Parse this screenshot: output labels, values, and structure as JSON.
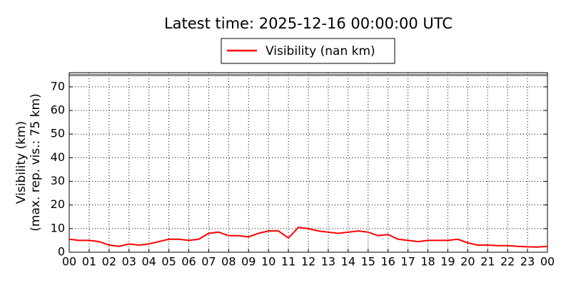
{
  "chart_data": {
    "type": "line",
    "title": "Latest time: 2025-12-16 00:00:00 UTC",
    "ylabel": [
      "Visibility (km)",
      "(max. rep. vis.: 75 km)"
    ],
    "x": [
      0,
      0.5,
      1,
      1.5,
      2,
      2.5,
      3,
      3.5,
      4,
      4.5,
      5,
      5.5,
      6,
      6.5,
      7,
      7.5,
      8,
      8.5,
      9,
      9.5,
      10,
      10.5,
      11,
      11.5,
      12,
      12.5,
      13,
      13.5,
      14,
      14.5,
      15,
      15.5,
      16,
      16.5,
      17,
      17.5,
      18,
      18.5,
      19,
      19.5,
      20,
      20.5,
      21,
      21.5,
      22,
      22.5,
      23,
      23.5,
      24
    ],
    "series": [
      {
        "name": "Visibility (nan km)",
        "color": "#ff0000",
        "values": [
          5.5,
          5,
          5,
          4.5,
          3,
          2.5,
          3.5,
          3,
          3.5,
          4.5,
          5.5,
          5.5,
          5,
          5.5,
          8,
          8.5,
          7,
          7,
          6.5,
          8,
          9,
          9,
          6,
          10.5,
          10,
          9,
          8.5,
          8,
          8.5,
          9,
          8.5,
          7,
          7.5,
          5.5,
          5,
          4.5,
          5,
          5,
          5,
          5.5,
          4,
          3,
          3,
          2.8,
          2.8,
          2.5,
          2.3,
          2.2,
          2.5
        ]
      }
    ],
    "reference_line": 75,
    "xlim": [
      0,
      24
    ],
    "xticks": [
      {
        "value": 0,
        "label": "00"
      },
      {
        "value": 1,
        "label": "01"
      },
      {
        "value": 2,
        "label": "02"
      },
      {
        "value": 3,
        "label": "03"
      },
      {
        "value": 4,
        "label": "04"
      },
      {
        "value": 5,
        "label": "05"
      },
      {
        "value": 6,
        "label": "06"
      },
      {
        "value": 7,
        "label": "07"
      },
      {
        "value": 8,
        "label": "08"
      },
      {
        "value": 9,
        "label": "09"
      },
      {
        "value": 10,
        "label": "10"
      },
      {
        "value": 11,
        "label": "11"
      },
      {
        "value": 12,
        "label": "12"
      },
      {
        "value": 13,
        "label": "13"
      },
      {
        "value": 14,
        "label": "14"
      },
      {
        "value": 15,
        "label": "15"
      },
      {
        "value": 16,
        "label": "16"
      },
      {
        "value": 17,
        "label": "17"
      },
      {
        "value": 18,
        "label": "18"
      },
      {
        "value": 19,
        "label": "19"
      },
      {
        "value": 20,
        "label": "20"
      },
      {
        "value": 21,
        "label": "21"
      },
      {
        "value": 22,
        "label": "22"
      },
      {
        "value": 23,
        "label": "23"
      },
      {
        "value": 24,
        "label": "00"
      }
    ],
    "ylim": [
      0,
      76
    ],
    "yticks": [
      0,
      10,
      20,
      30,
      40,
      50,
      60,
      70
    ],
    "grid": true
  }
}
